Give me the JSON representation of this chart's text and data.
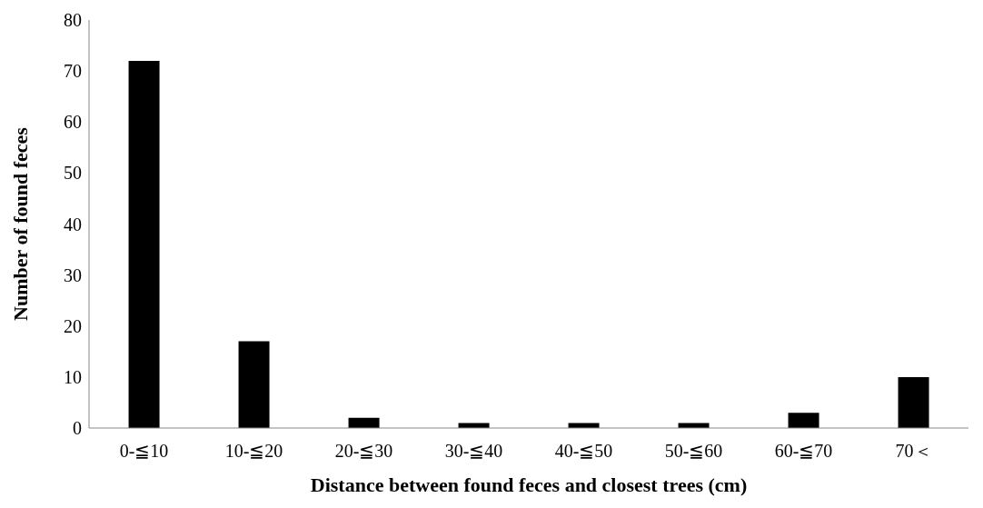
{
  "chart_data": {
    "type": "bar",
    "xlabel": "Distance between found feces and closest trees (cm)",
    "ylabel": "Number of found feces",
    "categories": [
      "0-≦10",
      "10-≦20",
      "20-≦30",
      "30-≦40",
      "40-≦50",
      "50-≦60",
      "60-≦70",
      "70＜"
    ],
    "values": [
      72,
      17,
      2,
      1,
      1,
      1,
      3,
      10
    ],
    "color": "#000000",
    "ylim": [
      0,
      80
    ],
    "yticks": [
      0,
      10,
      20,
      30,
      40,
      50,
      60,
      70,
      80
    ],
    "grid": false
  }
}
